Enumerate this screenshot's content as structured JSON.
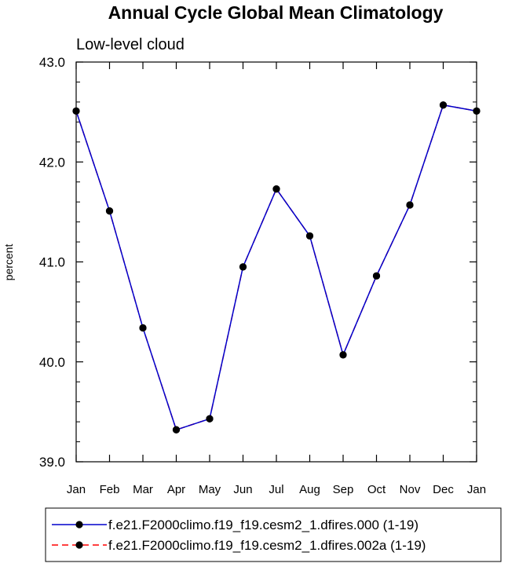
{
  "chart_data": {
    "type": "line",
    "title": "Annual Cycle Global Mean Climatology",
    "subtitle": "Low-level cloud",
    "xlabel": "",
    "ylabel": "percent",
    "ylim": [
      39.0,
      43.0
    ],
    "y_ticks": [
      "39.0",
      "40.0",
      "41.0",
      "42.0",
      "43.0"
    ],
    "y_tick_values": [
      39.0,
      40.0,
      41.0,
      42.0,
      43.0
    ],
    "y_minor_step": 0.2,
    "categories": [
      "Jan",
      "Feb",
      "Mar",
      "Apr",
      "May",
      "Jun",
      "Jul",
      "Aug",
      "Sep",
      "Oct",
      "Nov",
      "Dec",
      "Jan"
    ],
    "grid": false,
    "legend_position": "bottom",
    "series": [
      {
        "name": "f.e21.F2000climo.f19_f19.cesm2_1.dfires.000 (1-19)",
        "color": "#0000cc",
        "line_style": "solid",
        "marker": "filled-circle",
        "marker_color": "#000000",
        "values": [
          42.51,
          41.51,
          40.34,
          39.32,
          39.43,
          40.95,
          41.73,
          41.26,
          40.07,
          40.86,
          41.57,
          42.57,
          42.51
        ]
      },
      {
        "name": "f.e21.F2000climo.f19_f19.cesm2_1.dfires.002a (1-19)",
        "color": "#ff0000",
        "line_style": "dashed",
        "marker": "filled-circle",
        "marker_color": "#000000",
        "values": [
          42.51,
          41.51,
          40.34,
          39.32,
          39.43,
          40.95,
          41.73,
          41.26,
          40.07,
          40.86,
          41.57,
          42.57,
          42.51
        ]
      }
    ]
  }
}
